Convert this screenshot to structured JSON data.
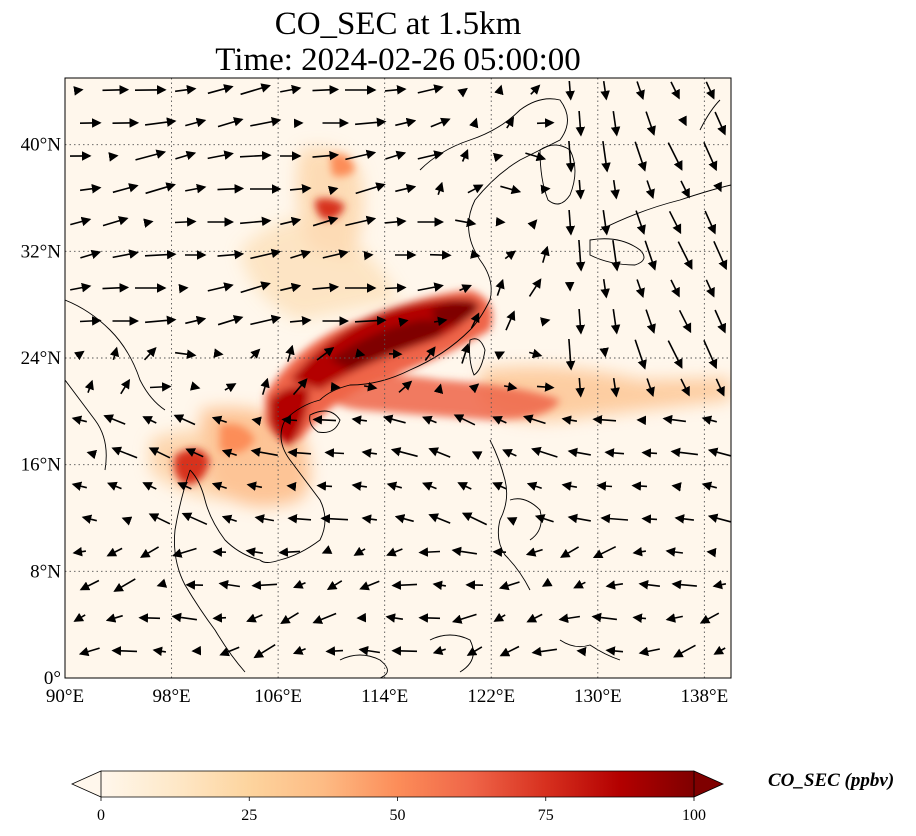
{
  "title": {
    "line1": "CO_SEC at 1.5km",
    "line2": "Time: 2024-02-26 05:00:00"
  },
  "map": {
    "lon_range": [
      90,
      140
    ],
    "lat_range": [
      0,
      45
    ],
    "lon_ticks": [
      {
        "value": 90,
        "label": "90°E"
      },
      {
        "value": 98,
        "label": "98°E"
      },
      {
        "value": 106,
        "label": "106°E"
      },
      {
        "value": 114,
        "label": "114°E"
      },
      {
        "value": 122,
        "label": "122°E"
      },
      {
        "value": 130,
        "label": "130°E"
      },
      {
        "value": 138,
        "label": "138°E"
      }
    ],
    "lat_ticks": [
      {
        "value": 0,
        "label": "0°"
      },
      {
        "value": 8,
        "label": "8°N"
      },
      {
        "value": 16,
        "label": "16°N"
      },
      {
        "value": 24,
        "label": "24°N"
      },
      {
        "value": 32,
        "label": "32°N"
      },
      {
        "value": 40,
        "label": "40°N"
      }
    ],
    "gridlines": "dotted"
  },
  "colorbar": {
    "label": "CO_SEC (ppbv)",
    "colormap": "OrRd",
    "range": [
      0,
      100
    ],
    "extend": "both",
    "ticks": [
      {
        "value": 0,
        "label": "0"
      },
      {
        "value": 25,
        "label": "25"
      },
      {
        "value": 50,
        "label": "50"
      },
      {
        "value": 75,
        "label": "75"
      },
      {
        "value": 100,
        "label": "100"
      }
    ],
    "colors": [
      "#fff7ec",
      "#fee8c8",
      "#fdd49e",
      "#fdbb84",
      "#fc8d59",
      "#ef6548",
      "#d7301f",
      "#b30000",
      "#7f0000"
    ]
  }
}
